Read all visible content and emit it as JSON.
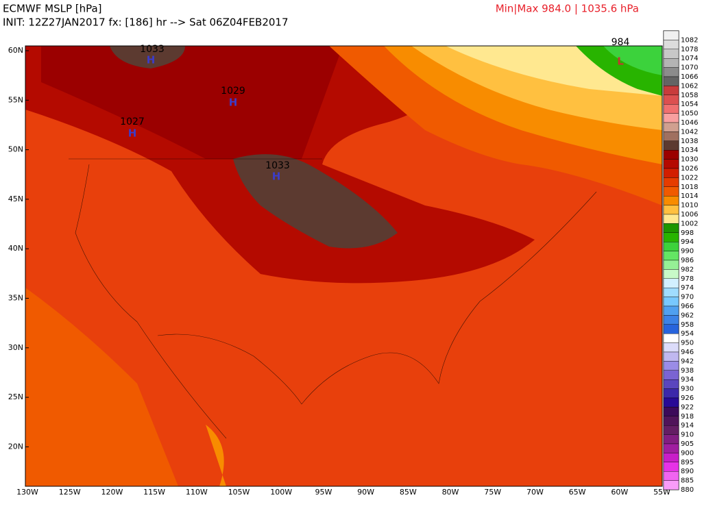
{
  "header": {
    "title": "ECMWF MSLP [hPa]",
    "init": "INIT: 12Z27JAN2017 fx: [186] hr --> Sat 06Z04FEB2017",
    "minmax": "Min|Max 984.0 | 1035.6 hPa"
  },
  "map": {
    "lat_labels": [
      "60N",
      "55N",
      "50N",
      "45N",
      "40N",
      "35N",
      "30N",
      "25N",
      "20N"
    ],
    "lon_labels": [
      "130W",
      "125W",
      "120W",
      "115W",
      "110W",
      "105W",
      "100W",
      "95W",
      "90W",
      "85W",
      "80W",
      "75W",
      "70W",
      "65W",
      "60W",
      "55W"
    ],
    "centers": [
      {
        "pressure": "1033",
        "symbol": "H"
      },
      {
        "pressure": "1029",
        "symbol": "H"
      },
      {
        "pressure": "1027",
        "symbol": "H"
      },
      {
        "pressure": "1033",
        "symbol": "H"
      },
      {
        "pressure": "984",
        "symbol": "L"
      }
    ]
  },
  "colorbar": [
    {
      "label": "1082",
      "color": "#f0f0f0"
    },
    {
      "label": "1078",
      "color": "#dcdcdc"
    },
    {
      "label": "1074",
      "color": "#c8c8c8"
    },
    {
      "label": "1070",
      "color": "#b4b4b4"
    },
    {
      "label": "1066",
      "color": "#8c8c8c"
    },
    {
      "label": "1062",
      "color": "#646464"
    },
    {
      "label": "1058",
      "color": "#c83c3c"
    },
    {
      "label": "1054",
      "color": "#dc5050"
    },
    {
      "label": "1050",
      "color": "#f07070"
    },
    {
      "label": "1046",
      "color": "#f8a0a0"
    },
    {
      "label": "1042",
      "color": "#d0a090"
    },
    {
      "label": "1038",
      "color": "#a07060"
    },
    {
      "label": "1034",
      "color": "#5c3a30"
    },
    {
      "label": "1030",
      "color": "#9b0000"
    },
    {
      "label": "1026",
      "color": "#b40a00"
    },
    {
      "label": "1022",
      "color": "#d21e00"
    },
    {
      "label": "1018",
      "color": "#e63c00"
    },
    {
      "label": "1014",
      "color": "#f05a00"
    },
    {
      "label": "1010",
      "color": "#f88c00"
    },
    {
      "label": "1006",
      "color": "#ffc040"
    },
    {
      "label": "1002",
      "color": "#ffe890"
    },
    {
      "label": "998",
      "color": "#1e9600"
    },
    {
      "label": "994",
      "color": "#28b400"
    },
    {
      "label": "990",
      "color": "#3cd23c"
    },
    {
      "label": "986",
      "color": "#64e664"
    },
    {
      "label": "982",
      "color": "#96f096"
    },
    {
      "label": "978",
      "color": "#c8fac8"
    },
    {
      "label": "974",
      "color": "#d2f0ff"
    },
    {
      "label": "970",
      "color": "#a0dcff"
    },
    {
      "label": "966",
      "color": "#78c8ff"
    },
    {
      "label": "962",
      "color": "#50a0f0"
    },
    {
      "label": "958",
      "color": "#3c82e6"
    },
    {
      "label": "954",
      "color": "#2864dc"
    },
    {
      "label": "950",
      "color": "#ffffff"
    },
    {
      "label": "946",
      "color": "#dcdcfa"
    },
    {
      "label": "942",
      "color": "#c0b8f0"
    },
    {
      "label": "938",
      "color": "#9a8ce6"
    },
    {
      "label": "934",
      "color": "#7a64d2"
    },
    {
      "label": "930",
      "color": "#5a46be"
    },
    {
      "label": "926",
      "color": "#3c28aa"
    },
    {
      "label": "922",
      "color": "#280a96"
    },
    {
      "label": "918",
      "color": "#3c0a5a"
    },
    {
      "label": "914",
      "color": "#50145a"
    },
    {
      "label": "910",
      "color": "#641e64"
    },
    {
      "label": "905",
      "color": "#821e82"
    },
    {
      "label": "900",
      "color": "#a01ea0"
    },
    {
      "label": "895",
      "color": "#c81ec8"
    },
    {
      "label": "890",
      "color": "#e632e6"
    },
    {
      "label": "885",
      "color": "#f064f0"
    },
    {
      "label": "880",
      "color": "#f89cf8"
    }
  ]
}
